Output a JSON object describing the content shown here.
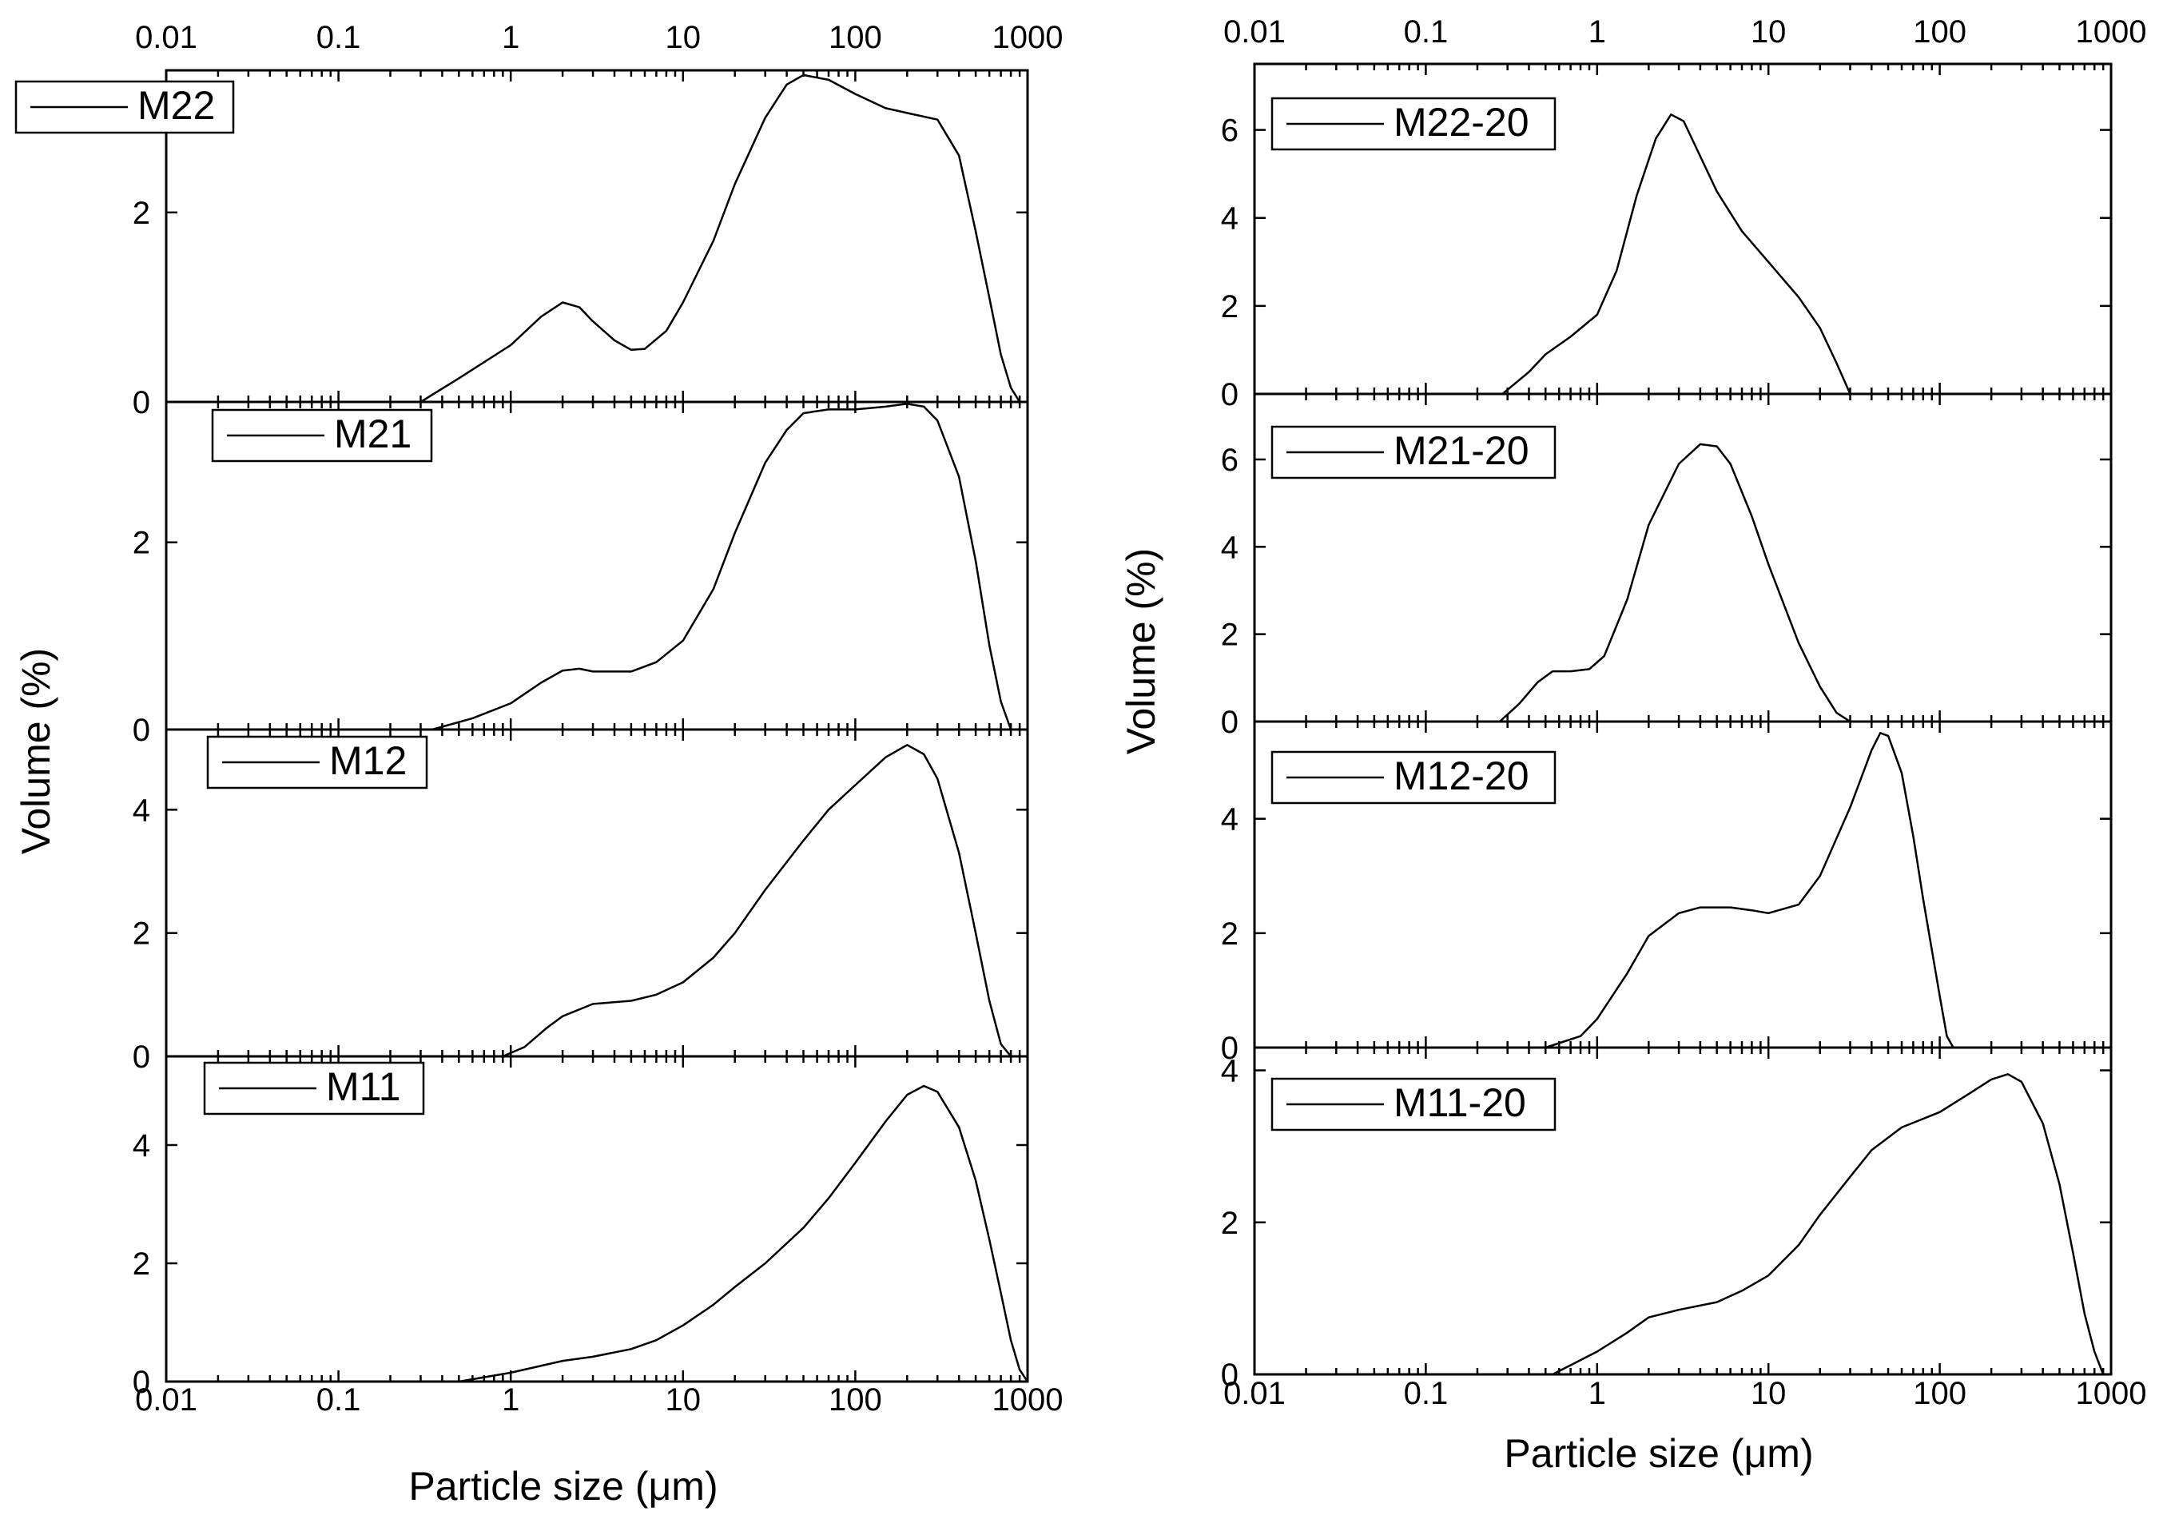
{
  "figure": {
    "colors": {
      "line": "#000000",
      "background": "#ffffff"
    }
  },
  "chart_data": [
    {
      "id": "left",
      "type": "line",
      "x_scale": "log",
      "xlim": [
        0.01,
        1000
      ],
      "xticks": [
        "0.01",
        "0.1",
        "1",
        "10",
        "100",
        "1000"
      ],
      "xlabel": "Particle size (μm)",
      "ylabel": "Volume (%)",
      "panels": [
        {
          "legend": "M22",
          "legend_placement": "top-left",
          "ylim": [
            0,
            3.5
          ],
          "yticks": [
            "0",
            "2"
          ],
          "series": [
            {
              "name": "M22",
              "points": [
                [
                  0.3,
                  0
                ],
                [
                  0.5,
                  0.25
                ],
                [
                  1,
                  0.6
                ],
                [
                  1.5,
                  0.9
                ],
                [
                  2,
                  1.05
                ],
                [
                  2.5,
                  1.0
                ],
                [
                  3,
                  0.85
                ],
                [
                  4,
                  0.65
                ],
                [
                  5,
                  0.55
                ],
                [
                  6,
                  0.56
                ],
                [
                  8,
                  0.75
                ],
                [
                  10,
                  1.05
                ],
                [
                  15,
                  1.7
                ],
                [
                  20,
                  2.3
                ],
                [
                  30,
                  3.0
                ],
                [
                  40,
                  3.35
                ],
                [
                  50,
                  3.45
                ],
                [
                  70,
                  3.4
                ],
                [
                  100,
                  3.25
                ],
                [
                  150,
                  3.1
                ],
                [
                  200,
                  3.05
                ],
                [
                  300,
                  2.98
                ],
                [
                  400,
                  2.6
                ],
                [
                  500,
                  1.8
                ],
                [
                  600,
                  1.1
                ],
                [
                  700,
                  0.5
                ],
                [
                  800,
                  0.15
                ],
                [
                  900,
                  0
                ]
              ]
            }
          ]
        },
        {
          "legend": "M21",
          "legend_placement": "top-left",
          "ylim": [
            0,
            3.5
          ],
          "yticks": [
            "0",
            "2"
          ],
          "series": [
            {
              "name": "M21",
              "points": [
                [
                  0.35,
                  0
                ],
                [
                  0.6,
                  0.12
                ],
                [
                  1,
                  0.28
                ],
                [
                  1.5,
                  0.5
                ],
                [
                  2,
                  0.63
                ],
                [
                  2.5,
                  0.65
                ],
                [
                  3,
                  0.62
                ],
                [
                  5,
                  0.62
                ],
                [
                  7,
                  0.72
                ],
                [
                  10,
                  0.95
                ],
                [
                  15,
                  1.5
                ],
                [
                  20,
                  2.1
                ],
                [
                  30,
                  2.85
                ],
                [
                  40,
                  3.2
                ],
                [
                  50,
                  3.38
                ],
                [
                  70,
                  3.42
                ],
                [
                  100,
                  3.42
                ],
                [
                  150,
                  3.45
                ],
                [
                  200,
                  3.48
                ],
                [
                  250,
                  3.45
                ],
                [
                  300,
                  3.3
                ],
                [
                  400,
                  2.7
                ],
                [
                  500,
                  1.8
                ],
                [
                  600,
                  0.9
                ],
                [
                  700,
                  0.3
                ],
                [
                  800,
                  0
                ]
              ]
            }
          ]
        },
        {
          "legend": "M12",
          "legend_placement": "top-left",
          "ylim": [
            0,
            5.3
          ],
          "yticks": [
            "0",
            "2",
            "4"
          ],
          "series": [
            {
              "name": "M12",
              "points": [
                [
                  0.9,
                  0
                ],
                [
                  1.2,
                  0.15
                ],
                [
                  1.6,
                  0.45
                ],
                [
                  2,
                  0.65
                ],
                [
                  3,
                  0.85
                ],
                [
                  5,
                  0.9
                ],
                [
                  7,
                  1.0
                ],
                [
                  10,
                  1.2
                ],
                [
                  15,
                  1.6
                ],
                [
                  20,
                  2.0
                ],
                [
                  30,
                  2.7
                ],
                [
                  50,
                  3.5
                ],
                [
                  70,
                  4.0
                ],
                [
                  100,
                  4.4
                ],
                [
                  150,
                  4.85
                ],
                [
                  200,
                  5.05
                ],
                [
                  250,
                  4.9
                ],
                [
                  300,
                  4.5
                ],
                [
                  400,
                  3.3
                ],
                [
                  500,
                  2.0
                ],
                [
                  600,
                  0.9
                ],
                [
                  700,
                  0.2
                ],
                [
                  800,
                  0
                ]
              ]
            }
          ]
        },
        {
          "legend": "M11",
          "legend_placement": "top-left",
          "ylim": [
            0,
            5.5
          ],
          "yticks": [
            "0",
            "2",
            "4"
          ],
          "series": [
            {
              "name": "M11",
              "points": [
                [
                  0.5,
                  0
                ],
                [
                  1,
                  0.15
                ],
                [
                  2,
                  0.35
                ],
                [
                  3,
                  0.42
                ],
                [
                  5,
                  0.55
                ],
                [
                  7,
                  0.7
                ],
                [
                  10,
                  0.95
                ],
                [
                  15,
                  1.3
                ],
                [
                  20,
                  1.6
                ],
                [
                  30,
                  2.0
                ],
                [
                  50,
                  2.6
                ],
                [
                  70,
                  3.1
                ],
                [
                  100,
                  3.7
                ],
                [
                  150,
                  4.4
                ],
                [
                  200,
                  4.85
                ],
                [
                  250,
                  5.0
                ],
                [
                  300,
                  4.9
                ],
                [
                  400,
                  4.3
                ],
                [
                  500,
                  3.4
                ],
                [
                  600,
                  2.4
                ],
                [
                  700,
                  1.5
                ],
                [
                  800,
                  0.7
                ],
                [
                  900,
                  0.2
                ],
                [
                  1000,
                  0
                ]
              ]
            }
          ]
        }
      ]
    },
    {
      "id": "right",
      "type": "line",
      "x_scale": "log",
      "xlim": [
        0.01,
        1000
      ],
      "xticks": [
        "0.01",
        "0.1",
        "1",
        "10",
        "100",
        "1000"
      ],
      "xlabel": "Particle size (μm)",
      "ylabel": "Volume (%)",
      "panels": [
        {
          "legend": "M22-20",
          "legend_placement": "top-left",
          "ylim": [
            0,
            7.5
          ],
          "yticks": [
            "0",
            "2",
            "4",
            "6"
          ],
          "series": [
            {
              "name": "M22-20",
              "points": [
                [
                  0.28,
                  0
                ],
                [
                  0.4,
                  0.5
                ],
                [
                  0.5,
                  0.9
                ],
                [
                  0.7,
                  1.3
                ],
                [
                  1,
                  1.8
                ],
                [
                  1.3,
                  2.8
                ],
                [
                  1.7,
                  4.5
                ],
                [
                  2.2,
                  5.8
                ],
                [
                  2.7,
                  6.35
                ],
                [
                  3.2,
                  6.2
                ],
                [
                  4,
                  5.4
                ],
                [
                  5,
                  4.6
                ],
                [
                  7,
                  3.7
                ],
                [
                  10,
                  3.0
                ],
                [
                  15,
                  2.2
                ],
                [
                  20,
                  1.5
                ],
                [
                  25,
                  0.7
                ],
                [
                  30,
                  0
                ]
              ]
            }
          ]
        },
        {
          "legend": "M21-20",
          "legend_placement": "top-left",
          "ylim": [
            0,
            7.5
          ],
          "yticks": [
            "0",
            "2",
            "4",
            "6"
          ],
          "series": [
            {
              "name": "M21-20",
              "points": [
                [
                  0.27,
                  0
                ],
                [
                  0.35,
                  0.4
                ],
                [
                  0.45,
                  0.9
                ],
                [
                  0.55,
                  1.15
                ],
                [
                  0.7,
                  1.15
                ],
                [
                  0.9,
                  1.2
                ],
                [
                  1.1,
                  1.5
                ],
                [
                  1.5,
                  2.8
                ],
                [
                  2,
                  4.5
                ],
                [
                  3,
                  5.9
                ],
                [
                  4,
                  6.35
                ],
                [
                  5,
                  6.3
                ],
                [
                  6,
                  5.9
                ],
                [
                  8,
                  4.7
                ],
                [
                  10,
                  3.6
                ],
                [
                  15,
                  1.8
                ],
                [
                  20,
                  0.8
                ],
                [
                  25,
                  0.2
                ],
                [
                  30,
                  0
                ]
              ]
            }
          ]
        },
        {
          "legend": "M12-20",
          "legend_placement": "top-left",
          "ylim": [
            0,
            5.7
          ],
          "yticks": [
            "0",
            "2",
            "4"
          ],
          "series": [
            {
              "name": "M12-20",
              "points": [
                [
                  0.5,
                  0
                ],
                [
                  0.8,
                  0.2
                ],
                [
                  1,
                  0.5
                ],
                [
                  1.5,
                  1.3
                ],
                [
                  2,
                  1.95
                ],
                [
                  3,
                  2.35
                ],
                [
                  4,
                  2.45
                ],
                [
                  6,
                  2.45
                ],
                [
                  8,
                  2.4
                ],
                [
                  10,
                  2.35
                ],
                [
                  15,
                  2.5
                ],
                [
                  20,
                  3.0
                ],
                [
                  30,
                  4.2
                ],
                [
                  40,
                  5.2
                ],
                [
                  45,
                  5.5
                ],
                [
                  50,
                  5.45
                ],
                [
                  60,
                  4.8
                ],
                [
                  70,
                  3.7
                ],
                [
                  80,
                  2.6
                ],
                [
                  100,
                  0.9
                ],
                [
                  110,
                  0.2
                ],
                [
                  120,
                  0
                ]
              ]
            }
          ]
        },
        {
          "legend": "M11-20",
          "legend_placement": "top-left",
          "ylim": [
            0,
            4.3
          ],
          "yticks": [
            "0",
            "2",
            "4"
          ],
          "series": [
            {
              "name": "M11-20",
              "points": [
                [
                  0.55,
                  0
                ],
                [
                  1,
                  0.3
                ],
                [
                  1.5,
                  0.55
                ],
                [
                  2,
                  0.75
                ],
                [
                  3,
                  0.85
                ],
                [
                  5,
                  0.95
                ],
                [
                  7,
                  1.1
                ],
                [
                  10,
                  1.3
                ],
                [
                  15,
                  1.7
                ],
                [
                  20,
                  2.1
                ],
                [
                  30,
                  2.6
                ],
                [
                  40,
                  2.95
                ],
                [
                  60,
                  3.25
                ],
                [
                  100,
                  3.45
                ],
                [
                  150,
                  3.7
                ],
                [
                  200,
                  3.88
                ],
                [
                  250,
                  3.95
                ],
                [
                  300,
                  3.85
                ],
                [
                  400,
                  3.3
                ],
                [
                  500,
                  2.5
                ],
                [
                  600,
                  1.6
                ],
                [
                  700,
                  0.8
                ],
                [
                  800,
                  0.3
                ],
                [
                  900,
                  0
                ]
              ]
            }
          ]
        }
      ]
    }
  ]
}
